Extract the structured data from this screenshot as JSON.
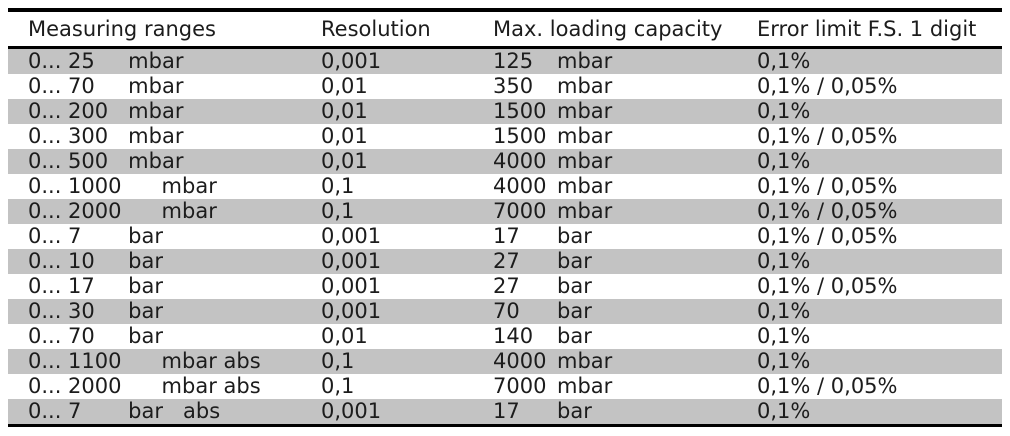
{
  "table": {
    "headers": [
      "Measuring ranges",
      "Resolution",
      "Max. loading capacity",
      "Error limit F.S. 1 digit"
    ],
    "rows": [
      {
        "range": "0... 25     mbar",
        "resolution": "0,001",
        "capacity_value": "125",
        "capacity_unit": "mbar",
        "error_limit": "0,1%"
      },
      {
        "range": "0... 70     mbar",
        "resolution": "0,01",
        "capacity_value": "350",
        "capacity_unit": "mbar",
        "error_limit": "0,1% / 0,05%"
      },
      {
        "range": "0... 200   mbar",
        "resolution": "0,01",
        "capacity_value": "1500",
        "capacity_unit": "mbar",
        "error_limit": "0,1%"
      },
      {
        "range": "0... 300   mbar",
        "resolution": "0,01",
        "capacity_value": "1500",
        "capacity_unit": "mbar",
        "error_limit": "0,1% / 0,05%"
      },
      {
        "range": "0... 500   mbar",
        "resolution": "0,01",
        "capacity_value": "4000",
        "capacity_unit": "mbar",
        "error_limit": "0,1%"
      },
      {
        "range": "0... 1000      mbar",
        "resolution": "0,1",
        "capacity_value": "4000",
        "capacity_unit": "mbar",
        "error_limit": "0,1% / 0,05%"
      },
      {
        "range": "0... 2000      mbar",
        "resolution": "0,1",
        "capacity_value": "7000",
        "capacity_unit": "mbar",
        "error_limit": "0,1% / 0,05%"
      },
      {
        "range": "0... 7       bar",
        "resolution": "0,001",
        "capacity_value": "17",
        "capacity_unit": "bar",
        "error_limit": "0,1% / 0,05%"
      },
      {
        "range": "0... 10     bar",
        "resolution": "0,001",
        "capacity_value": "27",
        "capacity_unit": "bar",
        "error_limit": "0,1%"
      },
      {
        "range": "0... 17     bar",
        "resolution": "0,001",
        "capacity_value": "27",
        "capacity_unit": "bar",
        "error_limit": "0,1% / 0,05%"
      },
      {
        "range": "0... 30     bar",
        "resolution": "0,001",
        "capacity_value": "70",
        "capacity_unit": "bar",
        "error_limit": "0,1%"
      },
      {
        "range": "0... 70     bar",
        "resolution": "0,01",
        "capacity_value": "140",
        "capacity_unit": "bar",
        "error_limit": "0,1%"
      },
      {
        "range": "0... 1100      mbar abs",
        "resolution": "0,1",
        "capacity_value": "4000",
        "capacity_unit": "mbar",
        "error_limit": "0,1%"
      },
      {
        "range": "0... 2000      mbar abs",
        "resolution": "0,1",
        "capacity_value": "7000",
        "capacity_unit": "mbar",
        "error_limit": "0,1% / 0,05%"
      },
      {
        "range": "0... 7       bar   abs",
        "resolution": "0,001",
        "capacity_value": "17",
        "capacity_unit": "bar",
        "error_limit": "0,1%"
      }
    ]
  },
  "colors": {
    "stripe_gray": "#c3c3c3",
    "rule_black": "#000000",
    "text": "#1c1c1c",
    "page_background": "#ffffff"
  }
}
